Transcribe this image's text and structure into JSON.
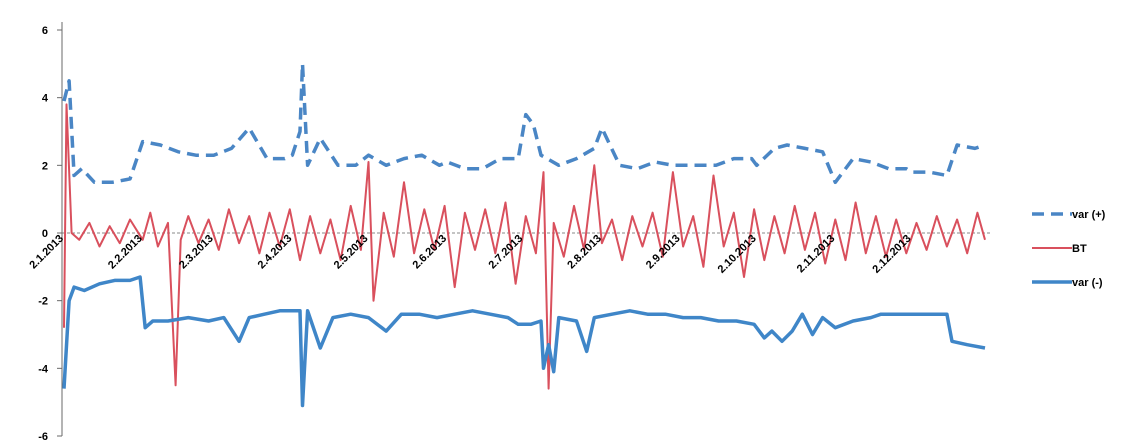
{
  "chart_data": {
    "type": "line",
    "title": "",
    "xlabel": "",
    "ylabel": "",
    "ylim": [
      -6,
      6
    ],
    "yticks": [
      6,
      4,
      2,
      0,
      -2,
      -4,
      -6
    ],
    "x_tick_labels": [
      "2.1.2013",
      "2.2.2013",
      "2.3.2013",
      "2.4.2013",
      "2.5.2013",
      "2.6.2013",
      "2.7.2013",
      "2.8.2013",
      "2.9.2013",
      "2.10.2013",
      "2.11.2013",
      "2.12.2013"
    ],
    "legend_position": "right",
    "zero_line": true,
    "series": [
      {
        "name": "var (+)",
        "style": "dashed",
        "color": "#4a86c5",
        "points": [
          [
            "2.1.2013",
            3.9
          ],
          [
            "4.1.2013",
            4.5
          ],
          [
            "6.1.2013",
            1.7
          ],
          [
            "9.1.2013",
            1.9
          ],
          [
            "14.1.2013",
            1.5
          ],
          [
            "21.1.2013",
            1.5
          ],
          [
            "28.1.2013",
            1.6
          ],
          [
            "2.2.2013",
            2.7
          ],
          [
            "9.2.2013",
            2.6
          ],
          [
            "16.2.2013",
            2.4
          ],
          [
            "23.2.2013",
            2.3
          ],
          [
            "2.3.2013",
            2.3
          ],
          [
            "9.3.2013",
            2.5
          ],
          [
            "16.3.2013",
            3.1
          ],
          [
            "23.3.2013",
            2.2
          ],
          [
            "30.3.2013",
            2.2
          ],
          [
            "2.4.2013",
            2.3
          ],
          [
            "5.4.2013",
            3.0
          ],
          [
            "6.4.2013",
            5.0
          ],
          [
            "8.4.2013",
            2.0
          ],
          [
            "13.4.2013",
            2.8
          ],
          [
            "20.4.2013",
            2.0
          ],
          [
            "27.4.2013",
            2.0
          ],
          [
            "2.5.2013",
            2.3
          ],
          [
            "9.5.2013",
            2.0
          ],
          [
            "16.5.2013",
            2.2
          ],
          [
            "23.5.2013",
            2.3
          ],
          [
            "30.5.2013",
            2.0
          ],
          [
            "2.6.2013",
            2.1
          ],
          [
            "9.6.2013",
            1.9
          ],
          [
            "16.6.2013",
            1.9
          ],
          [
            "23.6.2013",
            2.2
          ],
          [
            "30.6.2013",
            2.2
          ],
          [
            "3.7.2013",
            3.5
          ],
          [
            "6.7.2013",
            3.2
          ],
          [
            "9.7.2013",
            2.3
          ],
          [
            "16.7.2013",
            2.0
          ],
          [
            "23.7.2013",
            2.2
          ],
          [
            "30.7.2013",
            2.5
          ],
          [
            "2.8.2013",
            3.1
          ],
          [
            "9.8.2013",
            2.0
          ],
          [
            "16.8.2013",
            1.9
          ],
          [
            "23.8.2013",
            2.1
          ],
          [
            "30.8.2013",
            2.0
          ],
          [
            "2.9.2013",
            2.0
          ],
          [
            "9.9.2013",
            2.0
          ],
          [
            "16.9.2013",
            2.0
          ],
          [
            "23.9.2013",
            2.2
          ],
          [
            "30.9.2013",
            2.2
          ],
          [
            "2.10.2013",
            2.0
          ],
          [
            "9.10.2013",
            2.5
          ],
          [
            "14.10.2013",
            2.6
          ],
          [
            "21.10.2013",
            2.5
          ],
          [
            "28.10.2013",
            2.4
          ],
          [
            "2.11.2013",
            1.5
          ],
          [
            "9.11.2013",
            2.2
          ],
          [
            "16.11.2013",
            2.1
          ],
          [
            "23.11.2013",
            1.9
          ],
          [
            "30.11.2013",
            1.9
          ],
          [
            "2.12.2013",
            1.8
          ],
          [
            "9.12.2013",
            1.8
          ],
          [
            "16.12.2013",
            1.7
          ],
          [
            "20.12.2013",
            2.6
          ],
          [
            "27.12.2013",
            2.5
          ],
          [
            "31.12.2013",
            2.6
          ]
        ]
      },
      {
        "name": "BT",
        "style": "solid",
        "color": "#d9505d",
        "points": [
          [
            "2.1.2013",
            -2.8
          ],
          [
            "3.1.2013",
            3.8
          ],
          [
            "5.1.2013",
            0.0
          ],
          [
            "8.1.2013",
            -0.2
          ],
          [
            "12.1.2013",
            0.3
          ],
          [
            "16.1.2013",
            -0.4
          ],
          [
            "20.1.2013",
            0.2
          ],
          [
            "24.1.2013",
            -0.3
          ],
          [
            "28.1.2013",
            0.4
          ],
          [
            "2.2.2013",
            -0.2
          ],
          [
            "5.2.2013",
            0.6
          ],
          [
            "8.2.2013",
            -0.4
          ],
          [
            "12.2.2013",
            0.3
          ],
          [
            "15.2.2013",
            -4.5
          ],
          [
            "17.2.2013",
            -0.2
          ],
          [
            "20.2.2013",
            0.5
          ],
          [
            "24.2.2013",
            -0.3
          ],
          [
            "28.2.2013",
            0.4
          ],
          [
            "4.3.2013",
            -0.5
          ],
          [
            "8.3.2013",
            0.7
          ],
          [
            "12.3.2013",
            -0.3
          ],
          [
            "16.3.2013",
            0.5
          ],
          [
            "20.3.2013",
            -0.6
          ],
          [
            "24.3.2013",
            0.6
          ],
          [
            "28.3.2013",
            -0.4
          ],
          [
            "1.4.2013",
            0.7
          ],
          [
            "5.4.2013",
            -0.8
          ],
          [
            "9.4.2013",
            0.5
          ],
          [
            "13.4.2013",
            -0.6
          ],
          [
            "17.4.2013",
            0.4
          ],
          [
            "21.4.2013",
            -0.8
          ],
          [
            "25.4.2013",
            0.8
          ],
          [
            "29.4.2013",
            -0.5
          ],
          [
            "2.5.2013",
            2.1
          ],
          [
            "4.5.2013",
            -2.0
          ],
          [
            "8.5.2013",
            0.6
          ],
          [
            "12.5.2013",
            -0.7
          ],
          [
            "16.5.2013",
            1.5
          ],
          [
            "20.5.2013",
            -0.6
          ],
          [
            "24.5.2013",
            0.7
          ],
          [
            "28.5.2013",
            -0.5
          ],
          [
            "1.6.2013",
            0.8
          ],
          [
            "5.6.2013",
            -1.6
          ],
          [
            "9.6.2013",
            0.6
          ],
          [
            "13.6.2013",
            -0.5
          ],
          [
            "17.6.2013",
            0.7
          ],
          [
            "21.6.2013",
            -0.6
          ],
          [
            "25.6.2013",
            0.9
          ],
          [
            "29.6.2013",
            -1.5
          ],
          [
            "3.7.2013",
            0.5
          ],
          [
            "7.7.2013",
            -0.6
          ],
          [
            "10.7.2013",
            1.8
          ],
          [
            "12.7.2013",
            -4.6
          ],
          [
            "14.7.2013",
            0.3
          ],
          [
            "18.7.2013",
            -0.7
          ],
          [
            "22.7.2013",
            0.8
          ],
          [
            "26.7.2013",
            -0.5
          ],
          [
            "30.7.2013",
            2.0
          ],
          [
            "2.8.2013",
            -0.3
          ],
          [
            "6.8.2013",
            0.4
          ],
          [
            "10.8.2013",
            -0.8
          ],
          [
            "14.8.2013",
            0.5
          ],
          [
            "18.8.2013",
            -0.4
          ],
          [
            "22.8.2013",
            0.6
          ],
          [
            "26.8.2013",
            -0.7
          ],
          [
            "30.8.2013",
            1.8
          ],
          [
            "3.9.2013",
            -0.4
          ],
          [
            "7.9.2013",
            0.5
          ],
          [
            "11.9.2013",
            -1.0
          ],
          [
            "15.9.2013",
            1.7
          ],
          [
            "19.9.2013",
            -0.4
          ],
          [
            "23.9.2013",
            0.6
          ],
          [
            "27.9.2013",
            -1.3
          ],
          [
            "1.10.2013",
            0.7
          ],
          [
            "5.10.2013",
            -0.8
          ],
          [
            "9.10.2013",
            0.5
          ],
          [
            "13.10.2013",
            -0.6
          ],
          [
            "17.10.2013",
            0.8
          ],
          [
            "21.10.2013",
            -0.5
          ],
          [
            "25.10.2013",
            0.6
          ],
          [
            "29.10.2013",
            -0.9
          ],
          [
            "2.11.2013",
            0.4
          ],
          [
            "6.11.2013",
            -0.8
          ],
          [
            "10.11.2013",
            0.9
          ],
          [
            "14.11.2013",
            -0.6
          ],
          [
            "18.11.2013",
            0.5
          ],
          [
            "22.11.2013",
            -0.7
          ],
          [
            "26.11.2013",
            0.4
          ],
          [
            "30.11.2013",
            -0.6
          ],
          [
            "4.12.2013",
            0.3
          ],
          [
            "8.12.2013",
            -0.5
          ],
          [
            "12.12.2013",
            0.5
          ],
          [
            "16.12.2013",
            -0.4
          ],
          [
            "20.12.2013",
            0.4
          ],
          [
            "24.12.2013",
            -0.6
          ],
          [
            "28.12.2013",
            0.6
          ],
          [
            "31.12.2013",
            -0.2
          ]
        ]
      },
      {
        "name": "var (-)",
        "style": "solid",
        "color": "#3f86c8",
        "points": [
          [
            "2.1.2013",
            -4.6
          ],
          [
            "4.1.2013",
            -2.0
          ],
          [
            "6.1.2013",
            -1.6
          ],
          [
            "10.1.2013",
            -1.7
          ],
          [
            "16.1.2013",
            -1.5
          ],
          [
            "22.1.2013",
            -1.4
          ],
          [
            "28.1.2013",
            -1.4
          ],
          [
            "1.2.2013",
            -1.3
          ],
          [
            "3.2.2013",
            -2.8
          ],
          [
            "6.2.2013",
            -2.6
          ],
          [
            "12.2.2013",
            -2.6
          ],
          [
            "20.2.2013",
            -2.5
          ],
          [
            "28.2.2013",
            -2.6
          ],
          [
            "6.3.2013",
            -2.5
          ],
          [
            "12.3.2013",
            -3.2
          ],
          [
            "16.3.2013",
            -2.5
          ],
          [
            "22.3.2013",
            -2.4
          ],
          [
            "28.3.2013",
            -2.3
          ],
          [
            "2.4.2013",
            -2.3
          ],
          [
            "5.4.2013",
            -2.3
          ],
          [
            "6.4.2013",
            -5.1
          ],
          [
            "8.4.2013",
            -2.3
          ],
          [
            "13.4.2013",
            -3.4
          ],
          [
            "18.4.2013",
            -2.5
          ],
          [
            "25.4.2013",
            -2.4
          ],
          [
            "2.5.2013",
            -2.5
          ],
          [
            "9.5.2013",
            -2.9
          ],
          [
            "15.5.2013",
            -2.4
          ],
          [
            "22.5.2013",
            -2.4
          ],
          [
            "29.5.2013",
            -2.5
          ],
          [
            "5.6.2013",
            -2.4
          ],
          [
            "12.6.2013",
            -2.3
          ],
          [
            "19.6.2013",
            -2.4
          ],
          [
            "26.6.2013",
            -2.5
          ],
          [
            "30.6.2013",
            -2.7
          ],
          [
            "5.7.2013",
            -2.7
          ],
          [
            "9.7.2013",
            -2.6
          ],
          [
            "10.7.2013",
            -4.0
          ],
          [
            "12.7.2013",
            -3.3
          ],
          [
            "14.7.2013",
            -4.1
          ],
          [
            "16.7.2013",
            -2.5
          ],
          [
            "23.7.2013",
            -2.6
          ],
          [
            "27.7.2013",
            -3.5
          ],
          [
            "30.7.2013",
            -2.5
          ],
          [
            "6.8.2013",
            -2.4
          ],
          [
            "13.8.2013",
            -2.3
          ],
          [
            "20.8.2013",
            -2.4
          ],
          [
            "27.8.2013",
            -2.4
          ],
          [
            "3.9.2013",
            -2.5
          ],
          [
            "10.9.2013",
            -2.5
          ],
          [
            "17.9.2013",
            -2.6
          ],
          [
            "24.9.2013",
            -2.6
          ],
          [
            "1.10.2013",
            -2.7
          ],
          [
            "5.10.2013",
            -3.1
          ],
          [
            "8.10.2013",
            -2.9
          ],
          [
            "12.10.2013",
            -3.2
          ],
          [
            "16.10.2013",
            -2.9
          ],
          [
            "20.10.2013",
            -2.4
          ],
          [
            "24.10.2013",
            -3.0
          ],
          [
            "28.10.2013",
            -2.5
          ],
          [
            "2.11.2013",
            -2.8
          ],
          [
            "9.11.2013",
            -2.6
          ],
          [
            "16.11.2013",
            -2.5
          ],
          [
            "20.11.2013",
            -2.4
          ],
          [
            "2.12.2013",
            -2.4
          ],
          [
            "9.12.2013",
            -2.4
          ],
          [
            "16.12.2013",
            -2.4
          ],
          [
            "18.12.2013",
            -3.2
          ],
          [
            "24.12.2013",
            -3.3
          ],
          [
            "31.12.2013",
            -3.4
          ]
        ]
      }
    ]
  }
}
